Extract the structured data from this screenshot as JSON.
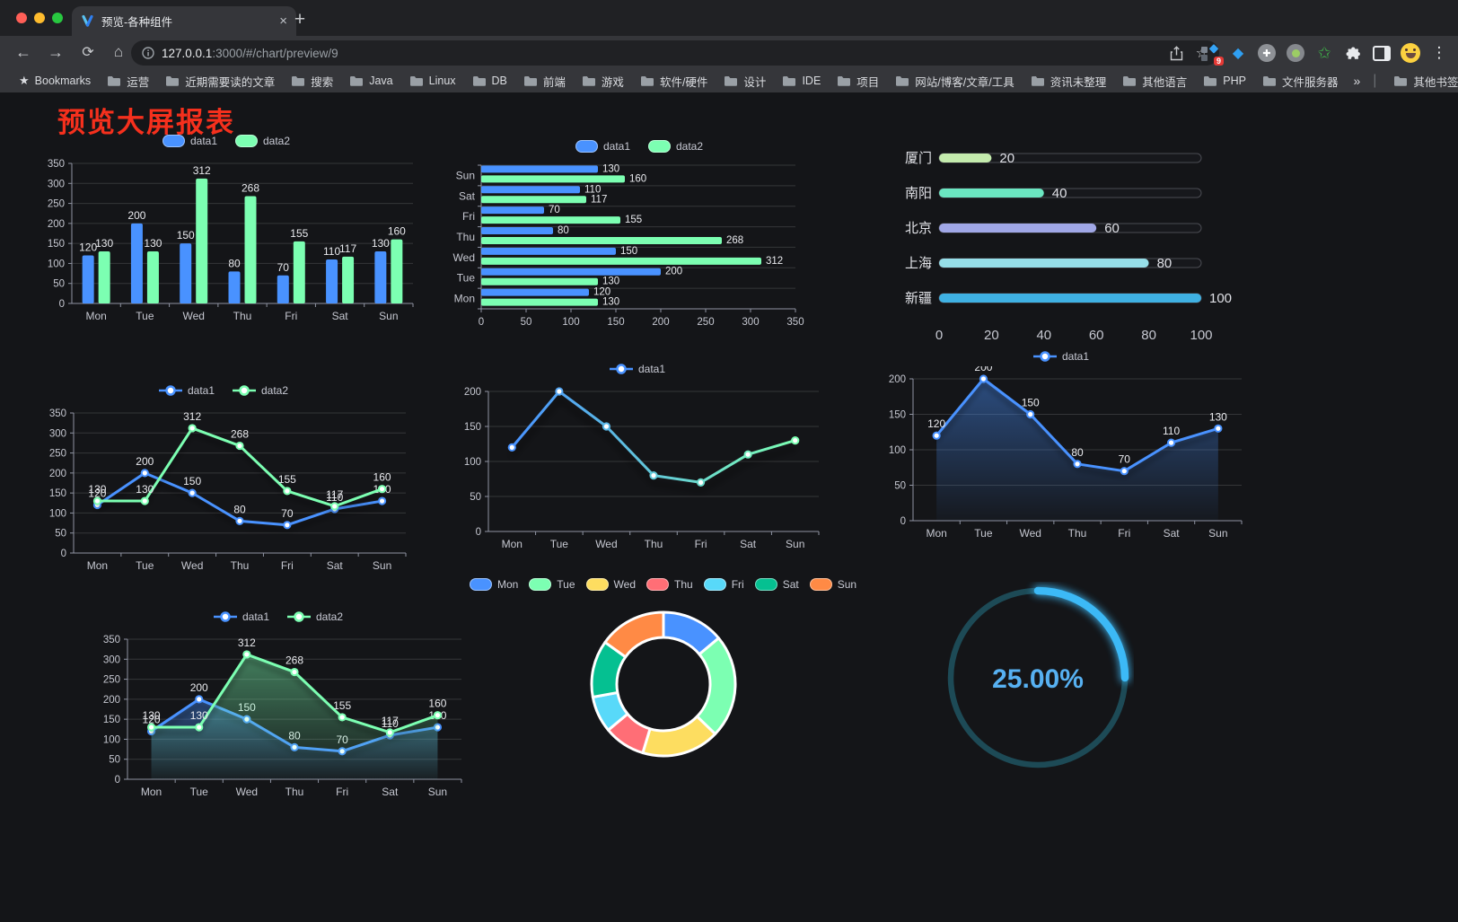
{
  "browser": {
    "window_controls": {
      "close": "#ff5f57",
      "minimize": "#febc2e",
      "maximize": "#28c840"
    },
    "tab": {
      "title": "预览-各种组件",
      "close_label": "×"
    },
    "new_tab_label": "+",
    "nav": {
      "back": "←",
      "forward": "→",
      "reload": "⟳",
      "home": "⌂"
    },
    "url": {
      "host": "127.0.0.1",
      "rest": ":3000/#/chart/preview/9"
    },
    "extensions_badge": "9",
    "bookmarks": {
      "label": "Bookmarks",
      "items": [
        "运营",
        "近期需要读的文章",
        "搜索",
        "Java",
        "Linux",
        "DB",
        "前端",
        "游戏",
        "软件/硬件",
        "设计",
        "IDE",
        "项目",
        "网站/博客/文章/工具",
        "资讯未整理",
        "其他语言",
        "PHP",
        "文件服务器"
      ],
      "overflow": "»",
      "other_label": "其他书签"
    }
  },
  "page": {
    "title": "预览大屏报表",
    "title_color": "#f5301d",
    "background": "#141518"
  },
  "palette": {
    "data1": "#4992ff",
    "data2": "#7cffb2",
    "axis": "#8f93a2",
    "tick_text": "#c6c8d1",
    "value_text": "#e9eaee",
    "grid": "rgba(255,255,255,0.14)"
  },
  "chart_data": [
    {
      "id": "bar-vertical",
      "type": "bar",
      "categories": [
        "Mon",
        "Tue",
        "Wed",
        "Thu",
        "Fri",
        "Sat",
        "Sun"
      ],
      "series": [
        {
          "name": "data1",
          "color": "#4992ff",
          "values": [
            120,
            200,
            150,
            80,
            70,
            110,
            130
          ]
        },
        {
          "name": "data2",
          "color": "#7cffb2",
          "values": [
            130,
            130,
            312,
            268,
            155,
            117,
            160
          ]
        }
      ],
      "ylim": [
        0,
        350
      ],
      "ytick": 50,
      "legend": "pill",
      "grid": true,
      "legend_position": "top"
    },
    {
      "id": "bar-horizontal",
      "type": "bar-horizontal",
      "categories": [
        "Mon",
        "Tue",
        "Wed",
        "Thu",
        "Fri",
        "Sat",
        "Sun"
      ],
      "categories_order": "bottom-to-top",
      "series": [
        {
          "name": "data1",
          "color": "#4992ff",
          "values": [
            120,
            200,
            150,
            80,
            70,
            110,
            130
          ]
        },
        {
          "name": "data2",
          "color": "#7cffb2",
          "values": [
            130,
            130,
            312,
            268,
            155,
            117,
            160
          ]
        }
      ],
      "xlim": [
        0,
        350
      ],
      "xtick": 50,
      "legend": "pill",
      "legend_position": "top"
    },
    {
      "id": "progress",
      "type": "progress",
      "categories": [
        "厦门",
        "南阳",
        "北京",
        "上海",
        "新疆"
      ],
      "values": [
        20,
        40,
        60,
        80,
        100
      ],
      "colors": [
        "#c4ebad",
        "#6be6c1",
        "#a0a7e6",
        "#96dee8",
        "#3fb1e3"
      ],
      "xlim": [
        0,
        100
      ],
      "xticks": [
        0,
        20,
        40,
        60,
        80,
        100
      ]
    },
    {
      "id": "line-two",
      "type": "line",
      "categories": [
        "Mon",
        "Tue",
        "Wed",
        "Thu",
        "Fri",
        "Sat",
        "Sun"
      ],
      "series": [
        {
          "name": "data1",
          "color": "#4992ff",
          "values": [
            120,
            200,
            150,
            80,
            70,
            110,
            130
          ]
        },
        {
          "name": "data2",
          "color": "#7cffb2",
          "values": [
            130,
            130,
            312,
            268,
            155,
            117,
            160
          ]
        }
      ],
      "ylim": [
        0,
        350
      ],
      "ytick": 50,
      "labels": true,
      "legend": "line",
      "legend_position": "top"
    },
    {
      "id": "line-gradient",
      "type": "line",
      "categories": [
        "Mon",
        "Tue",
        "Wed",
        "Thu",
        "Fri",
        "Sat",
        "Sun"
      ],
      "series": [
        {
          "name": "data1",
          "color": "#4992ff",
          "color_end": "#7cffb2",
          "values": [
            120,
            200,
            150,
            80,
            70,
            110,
            130
          ]
        }
      ],
      "ylim": [
        0,
        200
      ],
      "ytick": 50,
      "labels": false,
      "gradient": true,
      "shadow": true,
      "legend": "line",
      "legend_position": "top"
    },
    {
      "id": "area-one",
      "type": "line",
      "categories": [
        "Mon",
        "Tue",
        "Wed",
        "Thu",
        "Fri",
        "Sat",
        "Sun"
      ],
      "series": [
        {
          "name": "data1",
          "color": "#4992ff",
          "values": [
            120,
            200,
            150,
            80,
            70,
            110,
            130
          ]
        }
      ],
      "ylim": [
        0,
        200
      ],
      "ytick": 50,
      "labels": true,
      "area": true,
      "legend": "line",
      "legend_position": "top"
    },
    {
      "id": "area-two",
      "type": "line",
      "categories": [
        "Mon",
        "Tue",
        "Wed",
        "Thu",
        "Fri",
        "Sat",
        "Sun"
      ],
      "series": [
        {
          "name": "data1",
          "color": "#4992ff",
          "values": [
            120,
            200,
            150,
            80,
            70,
            110,
            130
          ]
        },
        {
          "name": "data2",
          "color": "#7cffb2",
          "values": [
            130,
            130,
            312,
            268,
            155,
            117,
            160
          ]
        }
      ],
      "ylim": [
        0,
        350
      ],
      "ytick": 50,
      "labels": true,
      "area": true,
      "legend": "line",
      "legend_position": "top"
    },
    {
      "id": "donut",
      "type": "donut",
      "categories": [
        "Mon",
        "Tue",
        "Wed",
        "Thu",
        "Fri",
        "Sat",
        "Sun"
      ],
      "values": [
        120,
        200,
        150,
        80,
        70,
        110,
        130
      ],
      "colors": [
        "#4992ff",
        "#7cffb2",
        "#fddd60",
        "#ff6e76",
        "#58d9f9",
        "#05c091",
        "#ff8a45"
      ],
      "legend": "pill",
      "legend_position": "top"
    },
    {
      "id": "gauge",
      "type": "gauge",
      "value": 25,
      "label": "25.00%",
      "color": "#3cb9f6",
      "track_color": "#1d4a56",
      "text_color": "#57b1f2"
    }
  ]
}
